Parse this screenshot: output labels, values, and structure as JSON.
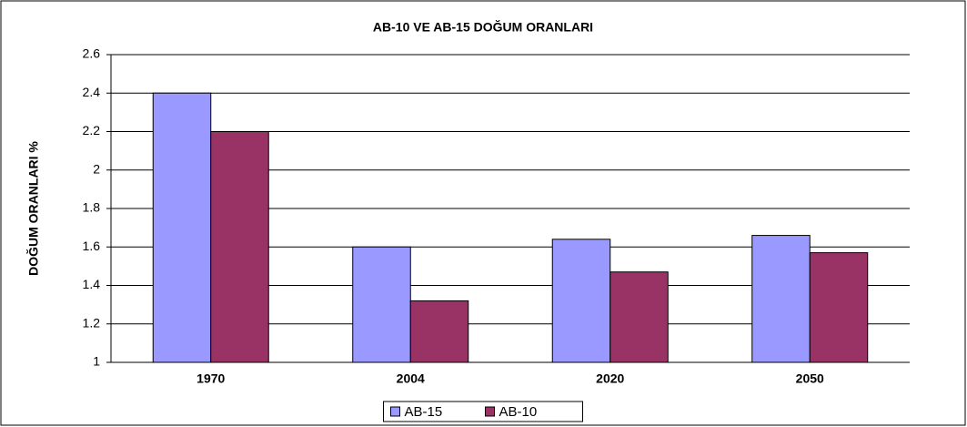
{
  "chart_data": {
    "type": "bar",
    "title": "AB-10 VE AB-15 DOĞUM ORANLARI",
    "ylabel": "DOĞUM ORANLARI %",
    "categories": [
      "1970",
      "2004",
      "2020",
      "2050"
    ],
    "series": [
      {
        "name": "AB-15",
        "color": "#9999ff",
        "values": [
          2.4,
          1.6,
          1.64,
          1.66
        ]
      },
      {
        "name": "AB-10",
        "color": "#993366",
        "values": [
          2.2,
          1.32,
          1.47,
          1.57
        ]
      }
    ],
    "ylim": [
      1,
      2.6
    ],
    "yticks": [
      1,
      1.2,
      1.4,
      1.6,
      1.8,
      2,
      2.2,
      2.4,
      2.6
    ],
    "grid": true,
    "legend": "bottom"
  }
}
